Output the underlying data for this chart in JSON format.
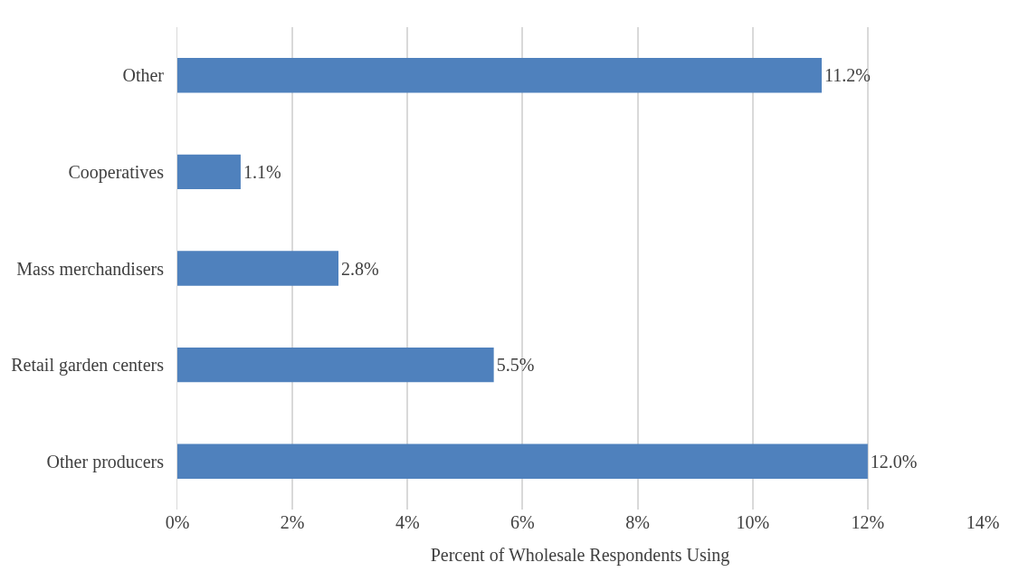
{
  "chart_data": {
    "type": "bar",
    "orientation": "horizontal",
    "xlabel": "Percent of Wholesale Respondents Using",
    "categories": [
      "Other",
      "Cooperatives",
      "Mass merchandisers",
      "Retail garden centers",
      "Other producers"
    ],
    "values": [
      11.2,
      1.1,
      2.8,
      5.5,
      12.0
    ],
    "value_labels": [
      "11.2%",
      "1.1%",
      "2.8%",
      "5.5%",
      "12.0%"
    ],
    "color": "#4f81bd",
    "xlim": [
      0,
      14
    ],
    "xticks": [
      {
        "value": 0,
        "label": "0%"
      },
      {
        "value": 2,
        "label": "2%"
      },
      {
        "value": 4,
        "label": "4%"
      },
      {
        "value": 6,
        "label": "6%"
      },
      {
        "value": 8,
        "label": "8%"
      },
      {
        "value": 10,
        "label": "10%"
      },
      {
        "value": 12,
        "label": "12%"
      },
      {
        "value": 14,
        "label": "14%"
      }
    ],
    "grid": "x",
    "legend": false
  }
}
